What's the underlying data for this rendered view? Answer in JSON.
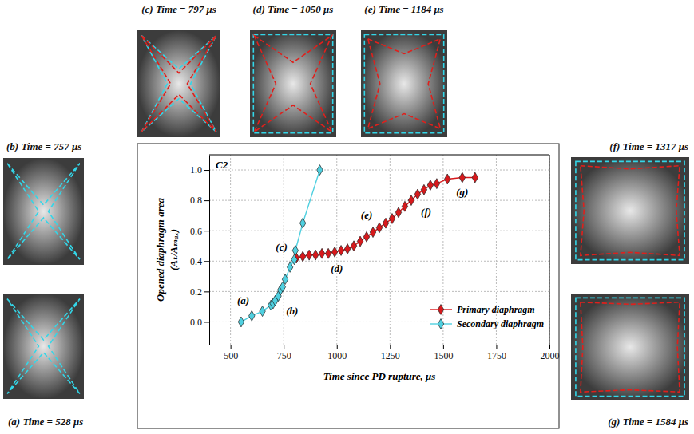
{
  "chart_data": {
    "type": "line",
    "title": "C2",
    "x_label": "Time since PD rupture, μs",
    "y_label": [
      "Opened diaphragm area",
      "(Aₜ/Aₘₐₓ)"
    ],
    "xlim": [
      400,
      2000
    ],
    "xticks": [
      500,
      750,
      1000,
      1250,
      1500,
      1750,
      2000
    ],
    "ylim": [
      -0.15,
      1.1
    ],
    "yticks": [
      {
        "value": 0,
        "label": "0.0"
      },
      {
        "value": 0.2,
        "label": "0.2"
      },
      {
        "value": 0.4,
        "label": "0.4"
      },
      {
        "value": 0.6,
        "label": "0.6"
      },
      {
        "value": 0.8,
        "label": "0.8"
      },
      {
        "value": 1,
        "label": "1.0"
      }
    ],
    "grid": true,
    "legend": "lower right",
    "series": [
      {
        "name": "Primary diaphragm",
        "color": "#d7191c",
        "marker": "diamond",
        "line_style": "solid",
        "x": [
          810,
          840,
          870,
          900,
          930,
          960,
          990,
          1020,
          1050,
          1080,
          1110,
          1140,
          1170,
          1200,
          1230,
          1260,
          1290,
          1320,
          1350,
          1380,
          1410,
          1440,
          1470,
          1520,
          1590,
          1650
        ],
        "values": [
          0.42,
          0.43,
          0.44,
          0.44,
          0.45,
          0.45,
          0.46,
          0.47,
          0.48,
          0.5,
          0.53,
          0.56,
          0.59,
          0.62,
          0.65,
          0.68,
          0.72,
          0.76,
          0.8,
          0.84,
          0.87,
          0.9,
          0.91,
          0.94,
          0.95,
          0.95
        ]
      },
      {
        "name": "Secondary diaphragm",
        "color": "#4fd0e0",
        "marker": "diamond",
        "line_style": "solid",
        "x": [
          550,
          600,
          650,
          690,
          700,
          710,
          725,
          735,
          745,
          757,
          780,
          800,
          805,
          840,
          920
        ],
        "values": [
          0.0,
          0.04,
          0.07,
          0.11,
          0.12,
          0.14,
          0.17,
          0.21,
          0.23,
          0.28,
          0.36,
          0.41,
          0.47,
          0.65,
          1.0
        ]
      }
    ],
    "annotations": [
      {
        "text": "(a)",
        "x": 560,
        "y": 0.12
      },
      {
        "text": "(b)",
        "x": 790,
        "y": 0.05
      },
      {
        "text": "(c)",
        "x": 740,
        "y": 0.47
      },
      {
        "text": "(d)",
        "x": 1000,
        "y": 0.33
      },
      {
        "text": "(e)",
        "x": 1140,
        "y": 0.68
      },
      {
        "text": "(f)",
        "x": 1420,
        "y": 0.7
      },
      {
        "text": "(g)",
        "x": 1590,
        "y": 0.83
      }
    ]
  },
  "panels": [
    {
      "caption": "(a) Time = 528 μs"
    },
    {
      "caption": "(b) Time = 757 μs"
    },
    {
      "caption": "(c) Time = 797 μs"
    },
    {
      "caption": "(d) Time = 1050 μs"
    },
    {
      "caption": "(e) Time = 1184 μs"
    },
    {
      "caption": "(f) Time = 1317 μs"
    },
    {
      "caption": "(g) Time = 1584 μs"
    }
  ]
}
